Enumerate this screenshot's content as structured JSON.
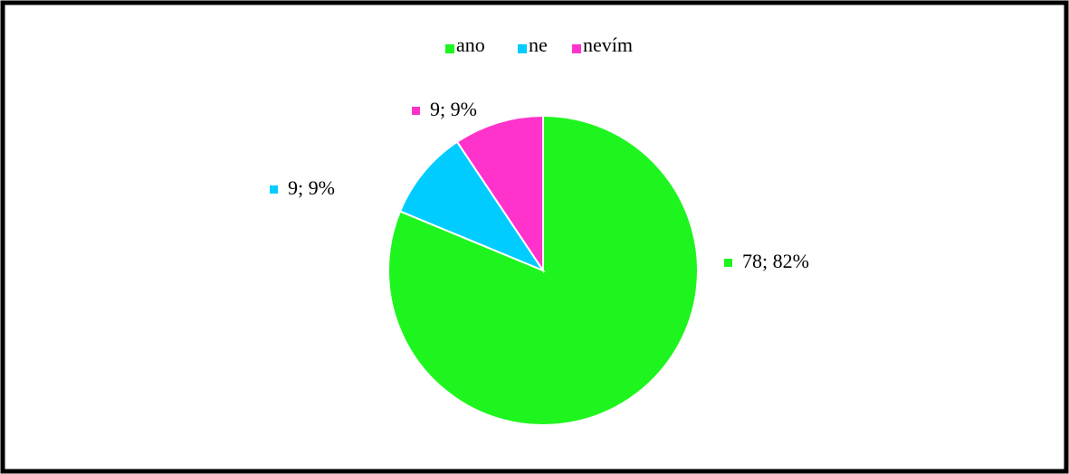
{
  "chart_data": {
    "type": "pie",
    "categories": [
      "ano",
      "ne",
      "nevím"
    ],
    "values": [
      78,
      9,
      9
    ],
    "value_labels": [
      "78; 82%",
      "9; 9%",
      "9; 9%"
    ],
    "colors": [
      "#1ef51e",
      "#00ccff",
      "#ff33cc"
    ],
    "legend": "top"
  }
}
